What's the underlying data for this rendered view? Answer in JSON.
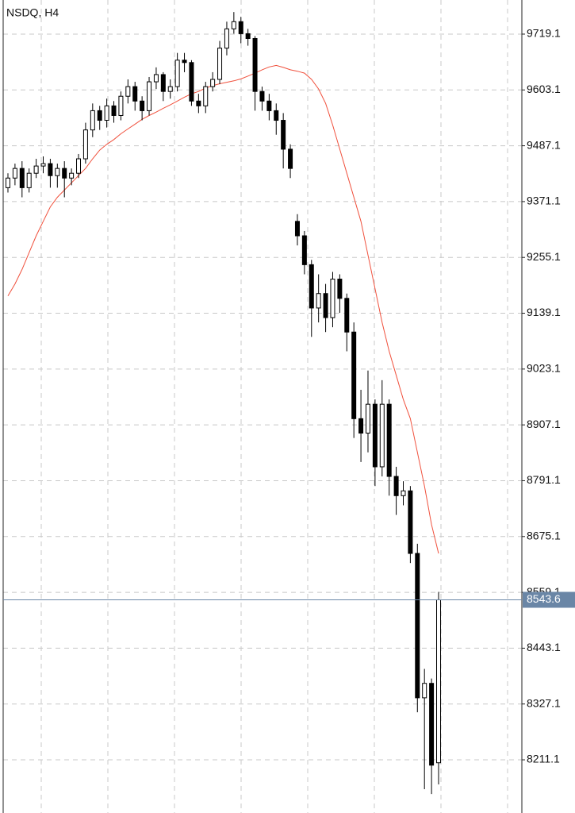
{
  "chart_data": {
    "type": "candlestick",
    "title": "NSDQ, H4",
    "open": [
      9400,
      9420,
      9440,
      9400,
      9430,
      9445,
      9450,
      9425,
      9440,
      9420,
      9430,
      9460,
      9520,
      9560,
      9540,
      9570,
      9550,
      9590,
      9610,
      9580,
      9560,
      9620,
      9635,
      9600,
      9610,
      9665,
      9660,
      9580,
      9570,
      9610,
      9625,
      9690,
      9730,
      9745,
      9720,
      9710,
      9600,
      9580,
      9560,
      9540,
      9480,
      9330,
      9300,
      9240,
      9150,
      9180,
      9130,
      9210,
      9170,
      9100,
      8920,
      8890,
      8950,
      8820,
      8950,
      8800,
      8760,
      8770,
      8640,
      8340,
      8370,
      8205
    ],
    "high": [
      9430,
      9450,
      9455,
      9440,
      9460,
      9465,
      9460,
      9450,
      9455,
      9440,
      9470,
      9535,
      9575,
      9570,
      9585,
      9580,
      9600,
      9625,
      9620,
      9590,
      9630,
      9650,
      9640,
      9625,
      9680,
      9680,
      9665,
      9595,
      9620,
      9640,
      9705,
      9745,
      9765,
      9755,
      9730,
      9715,
      9610,
      9595,
      9575,
      9555,
      9490,
      9345,
      9310,
      9250,
      9220,
      9200,
      9225,
      9220,
      9180,
      9120,
      8980,
      9020,
      8960,
      9000,
      8960,
      8820,
      8790,
      8780,
      8660,
      8400,
      8380,
      8560
    ],
    "low": [
      9390,
      9405,
      9380,
      9390,
      9420,
      9430,
      9400,
      9400,
      9380,
      9405,
      9420,
      9450,
      9505,
      9520,
      9525,
      9535,
      9540,
      9575,
      9560,
      9540,
      9550,
      9605,
      9580,
      9585,
      9600,
      9640,
      9570,
      9555,
      9555,
      9600,
      9615,
      9675,
      9720,
      9700,
      9695,
      9560,
      9560,
      9540,
      9510,
      9440,
      9420,
      9280,
      9220,
      9090,
      9120,
      9100,
      9110,
      9140,
      9060,
      8880,
      8830,
      8850,
      8780,
      8800,
      8760,
      8720,
      8740,
      8620,
      8310,
      8150,
      8140,
      8160
    ],
    "close": [
      9420,
      9440,
      9400,
      9430,
      9445,
      9450,
      9425,
      9440,
      9420,
      9430,
      9460,
      9520,
      9560,
      9540,
      9570,
      9550,
      9590,
      9610,
      9580,
      9560,
      9620,
      9635,
      9600,
      9610,
      9665,
      9660,
      9580,
      9570,
      9610,
      9625,
      9690,
      9730,
      9745,
      9720,
      9710,
      9600,
      9580,
      9560,
      9540,
      9480,
      9440,
      9300,
      9240,
      9150,
      9180,
      9130,
      9210,
      9170,
      9100,
      8920,
      8890,
      8950,
      8820,
      8950,
      8800,
      8760,
      8770,
      8640,
      8340,
      8370,
      8200,
      8543.6
    ],
    "ma": {
      "color": "#f0503c",
      "values": [
        9175,
        9200,
        9230,
        9265,
        9300,
        9330,
        9360,
        9380,
        9395,
        9410,
        9425,
        9440,
        9460,
        9478,
        9490,
        9500,
        9512,
        9522,
        9532,
        9542,
        9550,
        9557,
        9565,
        9572,
        9580,
        9588,
        9595,
        9600,
        9607,
        9612,
        9616,
        9619,
        9622,
        9626,
        9632,
        9638,
        9645,
        9651,
        9654,
        9650,
        9645,
        9642,
        9638,
        9625,
        9605,
        9575,
        9530,
        9480,
        9430,
        9380,
        9330,
        9260,
        9190,
        9120,
        9060,
        9010,
        8960,
        8920,
        8850,
        8780,
        8700,
        8640
      ]
    },
    "ylim": [
      8100.6,
      9790.0
    ],
    "yticks": [
      9719.1,
      9603.1,
      9487.1,
      9371.1,
      9255.1,
      9139.1,
      9023.1,
      8907.1,
      8791.1,
      8675.1,
      8559.1,
      8443.1,
      8327.1,
      8211.1
    ],
    "grid": true,
    "price_line_color": "#6a86a6"
  }
}
